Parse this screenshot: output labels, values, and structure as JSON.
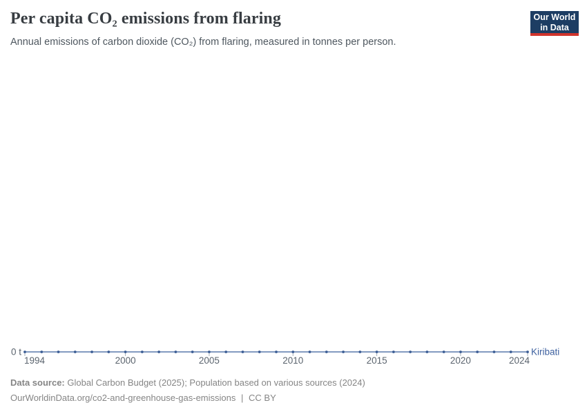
{
  "header": {
    "title": "Per capita CO₂ emissions from flaring",
    "subtitle": "Annual emissions of carbon dioxide (CO₂) from flaring, measured in tonnes per person.",
    "logo": {
      "line1": "Our World",
      "line2": "in Data",
      "bg_color": "#1d3d63",
      "bar_color": "#d0342c"
    }
  },
  "chart_data": {
    "type": "line",
    "title": "Per capita CO₂ emissions from flaring",
    "xlabel": "",
    "ylabel": "tonnes per person",
    "x": [
      1994,
      1995,
      1996,
      1997,
      1998,
      1999,
      2000,
      2001,
      2002,
      2003,
      2004,
      2005,
      2006,
      2007,
      2008,
      2009,
      2010,
      2011,
      2012,
      2013,
      2014,
      2015,
      2016,
      2017,
      2018,
      2019,
      2020,
      2021,
      2022,
      2023,
      2024
    ],
    "series": [
      {
        "name": "Kiribati",
        "color": "#5878ac",
        "marker_color": "#3a5c94",
        "label_color": "#3f62a0",
        "values": [
          0,
          0,
          0,
          0,
          0,
          0,
          0,
          0,
          0,
          0,
          0,
          0,
          0,
          0,
          0,
          0,
          0,
          0,
          0,
          0,
          0,
          0,
          0,
          0,
          0,
          0,
          0,
          0,
          0,
          0,
          0
        ]
      }
    ],
    "x_ticks": [
      1994,
      2000,
      2005,
      2010,
      2015,
      2020,
      2024
    ],
    "y_ticks": [
      0
    ],
    "y_axis_tick_label": "0 t",
    "ylim": [
      0,
      0
    ],
    "xlim": [
      1994,
      2024
    ],
    "grid": false,
    "legend_position": "line-end-label",
    "markers": "circle-every-year"
  },
  "footer": {
    "source_label": "Data source:",
    "source_text": "Global Carbon Budget (2025); Population based on various sources (2024)",
    "link_text": "OurWorldinData.org/co2-and-greenhouse-gas-emissions",
    "separator": "|",
    "license_text": "CC BY"
  }
}
